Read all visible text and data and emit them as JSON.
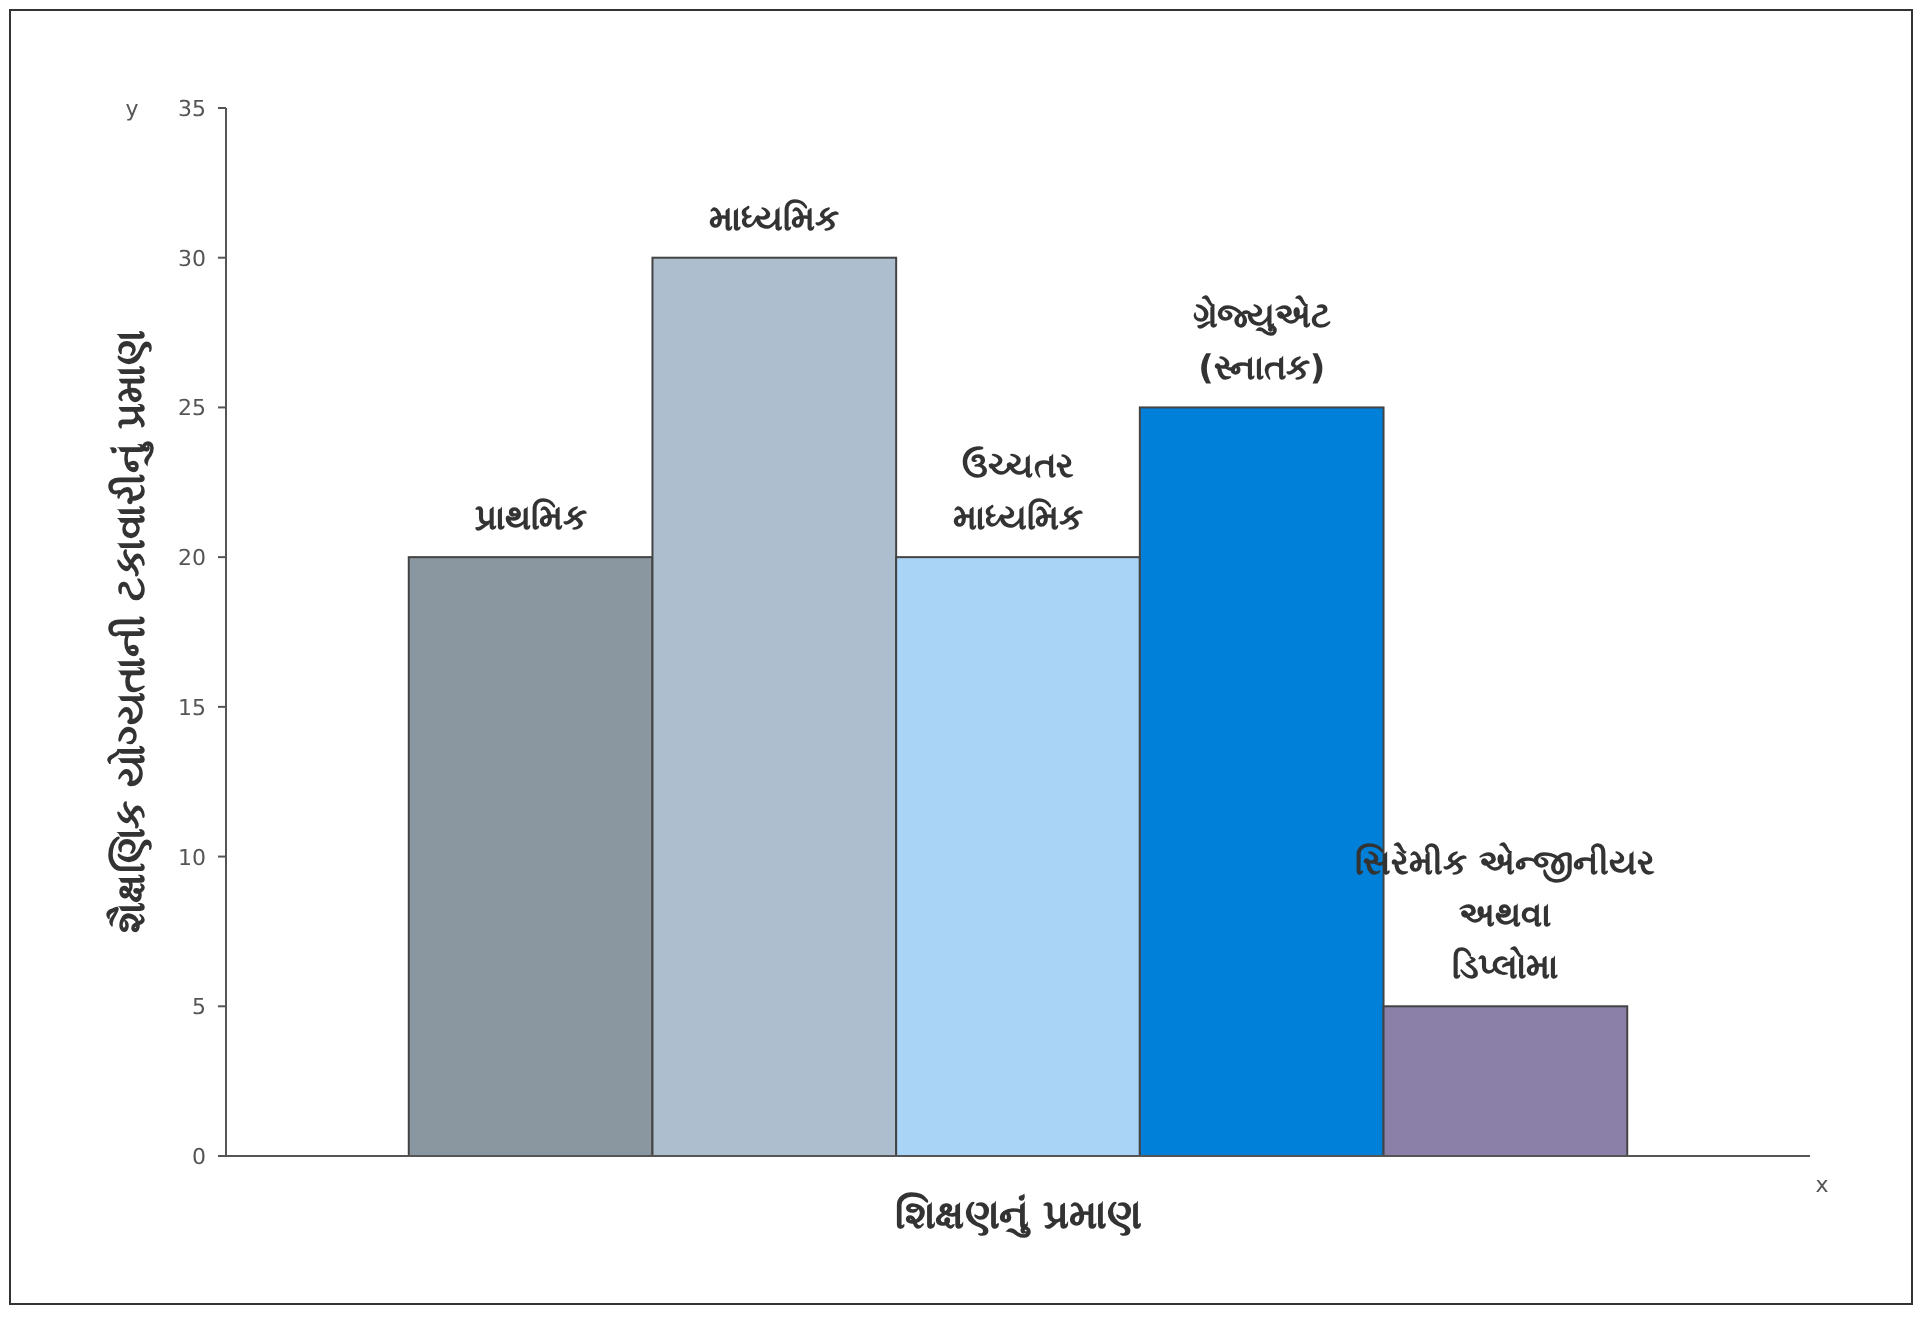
{
  "chart_data": {
    "type": "bar",
    "xlabel": "શિક્ષણનું પ્રમાણ",
    "ylabel": "શૈક્ષણિક યોગ્યતાની ટકાવારીનું પ્રમાણ",
    "annotations": [
      "y",
      "x"
    ],
    "categories": [
      "પ્રાથમિક",
      "માધ્યમિક",
      "ઉચ્ચતર\nમાધ્યમિક",
      "ગ્રેજ્યુએટ\n(સ્નાતક)",
      "સિરેમીક એન્જીનીયર\nઅથવા\nડિપ્લોમા"
    ],
    "values": [
      20,
      30,
      20,
      25,
      5
    ],
    "colors": [
      "#8a96a0",
      "#adbfcf",
      "#aad4f5",
      "#0080d8",
      "#8a80a8"
    ],
    "ylim": [
      0,
      35
    ],
    "yticks": [
      0,
      5,
      10,
      15,
      20,
      25,
      30,
      35
    ],
    "grid": false
  }
}
